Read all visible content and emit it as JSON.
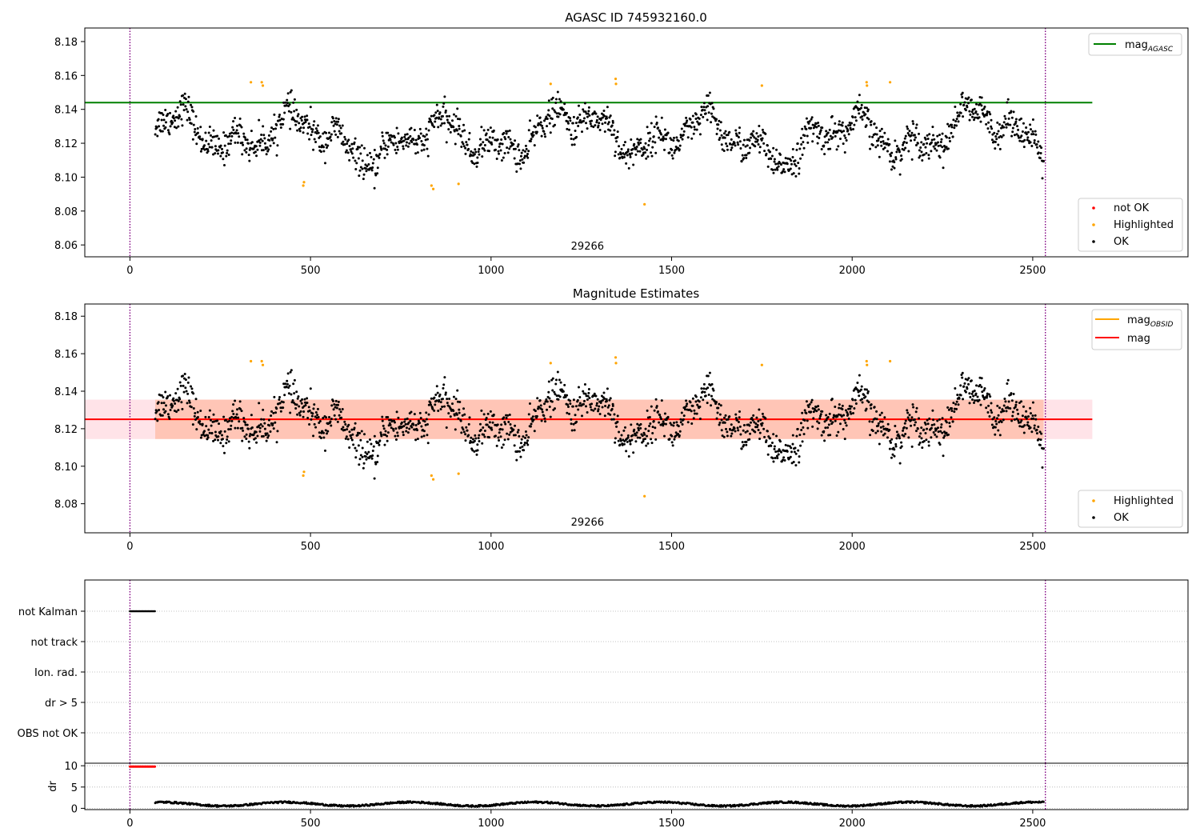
{
  "colors": {
    "ok": "#000000",
    "highlighted": "#ffa500",
    "not_ok": "#ff0000",
    "agasc_line": "#008000",
    "mag_line": "#ff0000",
    "obsid_line": "#ffa500",
    "band_outer": "#ffc0cb",
    "band_inner": "#ffa07a",
    "marker_line": "#800080",
    "grid": "#b0b0b0"
  },
  "chart_data": [
    {
      "type": "scatter",
      "title": "AGASC ID 745932160.0",
      "x_ticks": [
        0,
        500,
        1000,
        1500,
        2000,
        2500
      ],
      "y_ticks": [
        8.06,
        8.08,
        8.1,
        8.12,
        8.14,
        8.16,
        8.18
      ],
      "xlim": [
        -125,
        2930
      ],
      "ylim": [
        8.053,
        8.188
      ],
      "vlines": [
        0,
        2535
      ],
      "obsid_label": {
        "text": "29266",
        "x": 1267
      },
      "hlines": [
        {
          "name": "mag_AGASC",
          "y": 8.144,
          "x0": -125,
          "x1": 2665
        }
      ],
      "legend_lines": [
        {
          "label": "mag",
          "subscript": "AGASC"
        }
      ],
      "legend_points": [
        {
          "label": "not OK"
        },
        {
          "label": "Highlighted"
        },
        {
          "label": "OK"
        }
      ],
      "series": [
        {
          "name": "OK",
          "x_range": [
            70,
            2530
          ],
          "n": 1700,
          "base": 8.124
        },
        {
          "name": "Highlighted",
          "points": [
            [
              335,
              8.156
            ],
            [
              365,
              8.156
            ],
            [
              368,
              8.154
            ],
            [
              480,
              8.095
            ],
            [
              482,
              8.097
            ],
            [
              835,
              8.095
            ],
            [
              840,
              8.093
            ],
            [
              910,
              8.096
            ],
            [
              1165,
              8.155
            ],
            [
              1345,
              8.158
            ],
            [
              1346,
              8.155
            ],
            [
              1425,
              8.084
            ],
            [
              1750,
              8.154
            ],
            [
              2040,
              8.156
            ],
            [
              2041,
              8.154
            ],
            [
              2105,
              8.156
            ]
          ]
        }
      ]
    },
    {
      "type": "scatter",
      "title": "Magnitude Estimates",
      "x_ticks": [
        0,
        500,
        1000,
        1500,
        2000,
        2500
      ],
      "y_ticks": [
        8.08,
        8.1,
        8.12,
        8.14,
        8.16,
        8.18
      ],
      "xlim": [
        -125,
        2930
      ],
      "ylim": [
        8.0645,
        8.1865
      ],
      "vlines": [
        0,
        2535
      ],
      "obsid_label": {
        "text": "29266",
        "x": 1267
      },
      "bands": [
        {
          "y0": 8.1145,
          "y1": 8.1355,
          "x0": -125,
          "x1": 2665,
          "layer": "outer"
        },
        {
          "y0": 8.1145,
          "y1": 8.1355,
          "x0": 70,
          "x1": 2530,
          "layer": "inner"
        }
      ],
      "hlines": [
        {
          "name": "mag_OBSID",
          "y": 8.125,
          "x0": 70,
          "x1": 2530
        },
        {
          "name": "mag",
          "y": 8.125,
          "x0": -125,
          "x1": 2665
        }
      ],
      "legend_lines": [
        {
          "label": "mag",
          "subscript": "OBSID",
          "color": "obsid"
        },
        {
          "label": "mag",
          "subscript": "",
          "color": "mag"
        }
      ],
      "legend_points": [
        {
          "label": "Highlighted"
        },
        {
          "label": "OK"
        }
      ]
    },
    {
      "type": "scatter",
      "categories": [
        "not Kalman",
        "not track",
        "Ion. rad.",
        "dr > 5",
        "OBS not OK"
      ],
      "not_kalman_x_range": [
        0,
        70
      ],
      "dr_ylabel": "dr",
      "dr_ticks": [
        0,
        5,
        10
      ],
      "dr_ylim": [
        -0.3,
        10.6
      ],
      "dr_flagged_value": 9.8,
      "dr_ok_range": [
        0.5,
        1.5
      ],
      "x_ticks": [
        0,
        500,
        1000,
        1500,
        2000,
        2500
      ],
      "xlim": [
        -125,
        2930
      ]
    }
  ]
}
